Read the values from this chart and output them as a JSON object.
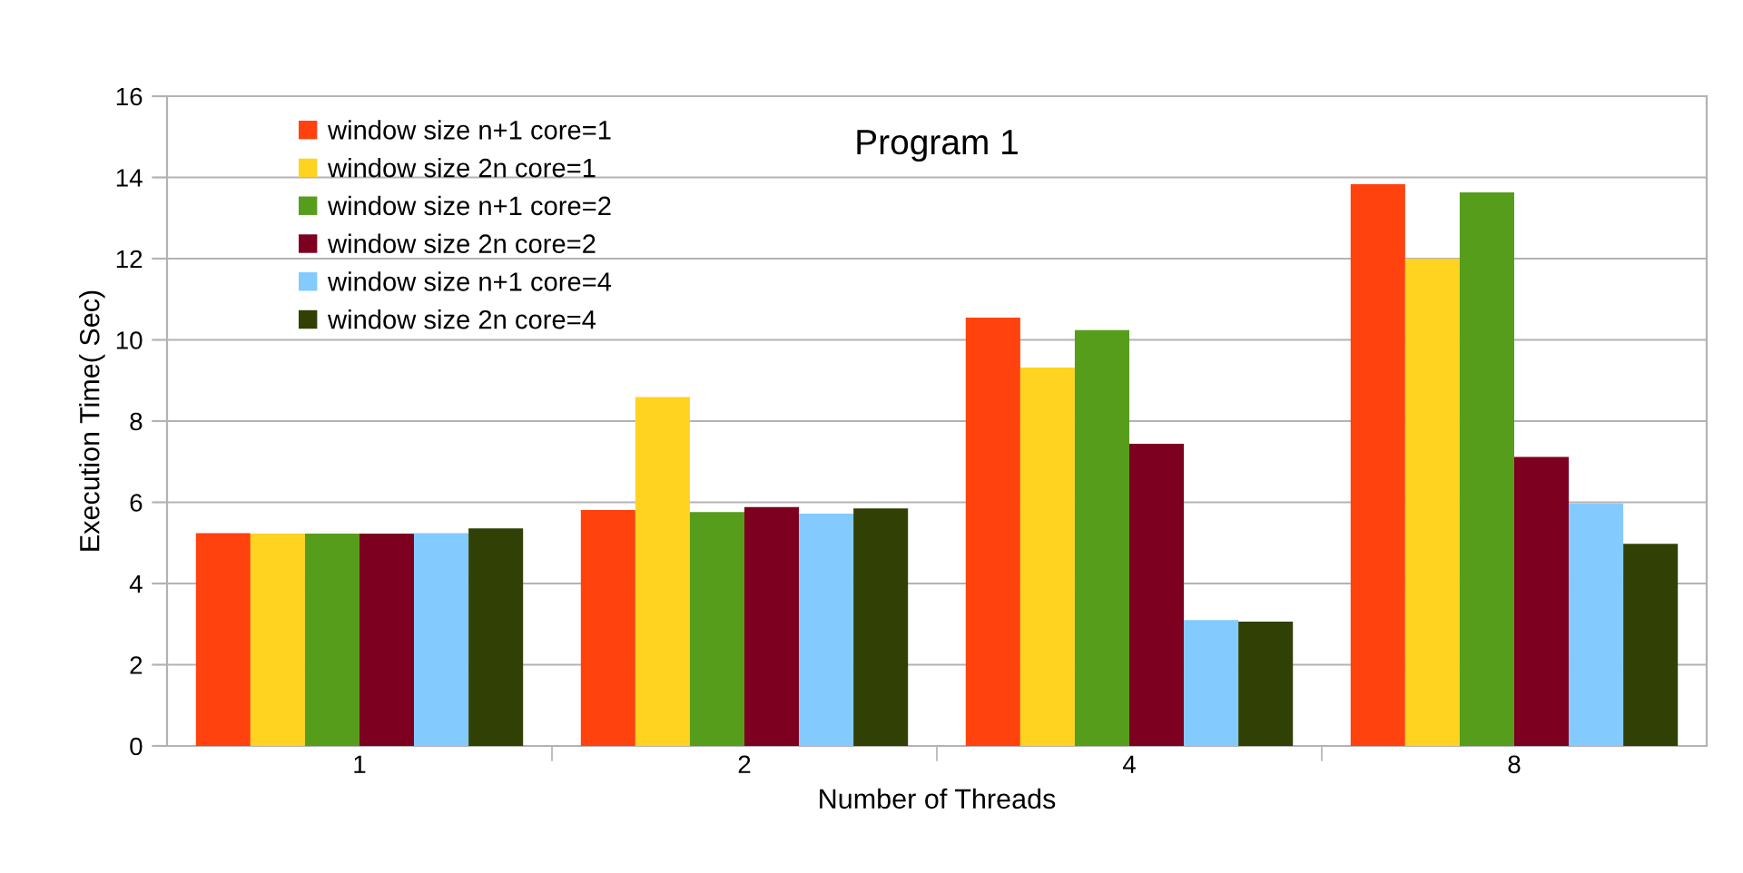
{
  "chart_data": {
    "type": "bar",
    "title": "Program 1",
    "xlabel": "Number of Threads",
    "ylabel": "Execution Time( Sec)",
    "categories": [
      "1",
      "2",
      "4",
      "8"
    ],
    "ylim": [
      0,
      16
    ],
    "yticks": [
      0,
      2,
      4,
      6,
      8,
      10,
      12,
      14,
      16
    ],
    "grid": "y",
    "legend": "top left",
    "series": [
      {
        "name": "window size n+1 core=1",
        "color": "#ff420e",
        "values": [
          5.24,
          5.81,
          10.55,
          13.83
        ]
      },
      {
        "name": "window size 2n core=1",
        "color": "#ffd320",
        "values": [
          5.23,
          8.59,
          9.32,
          12.0
        ]
      },
      {
        "name": "window size n+1 core=2",
        "color": "#579d1c",
        "values": [
          5.23,
          5.76,
          10.24,
          13.63
        ]
      },
      {
        "name": "window size 2n core=2",
        "color": "#7e0021",
        "values": [
          5.23,
          5.88,
          7.44,
          7.12
        ]
      },
      {
        "name": "window size n+1 core=4",
        "color": "#83caff",
        "values": [
          5.24,
          5.72,
          3.1,
          5.97
        ]
      },
      {
        "name": "window size 2n core=4",
        "color": "#314004",
        "values": [
          5.36,
          5.85,
          3.06,
          4.98
        ]
      }
    ]
  }
}
